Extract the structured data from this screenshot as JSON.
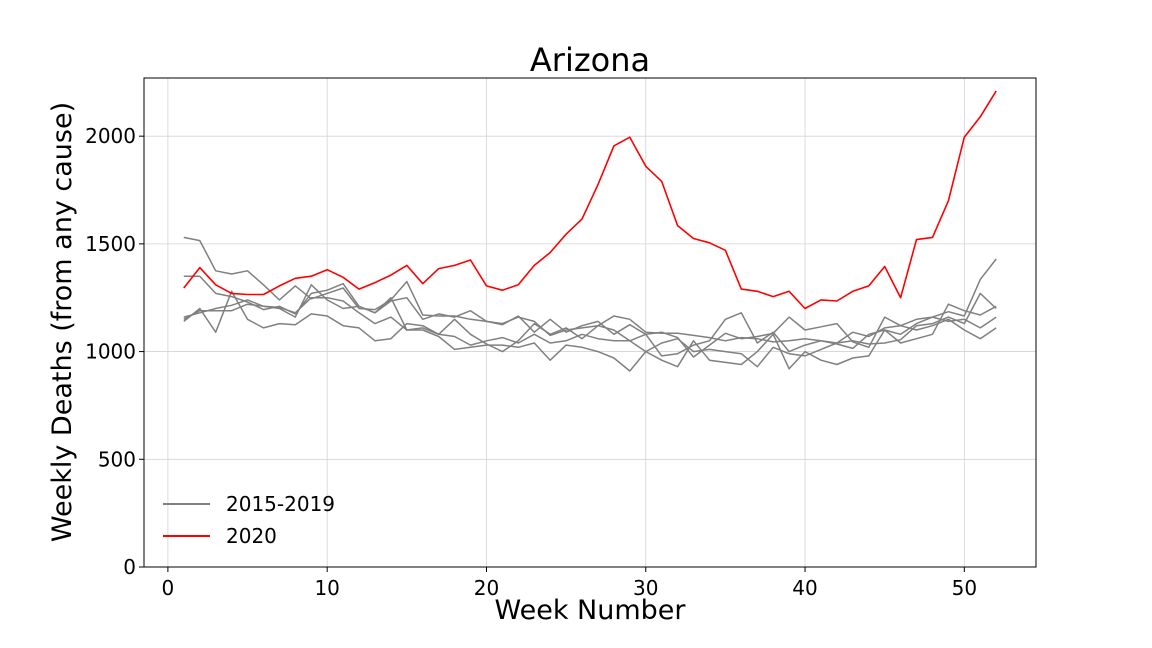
{
  "chart_data": {
    "type": "line",
    "title": "Arizona",
    "xlabel": "Week Number",
    "ylabel": "Weekly Deaths (from any cause)",
    "xlim": [
      -1.5,
      54.5
    ],
    "ylim": [
      0,
      2270
    ],
    "xticks": [
      0,
      10,
      20,
      30,
      40,
      50
    ],
    "yticks": [
      0,
      500,
      1000,
      1500,
      2000
    ],
    "grid": true,
    "legend_position": "lower-left",
    "legend": [
      {
        "label": "2015-2019",
        "color": "#808080"
      },
      {
        "label": "2020",
        "color": "#ff0000"
      }
    ],
    "x": [
      1,
      2,
      3,
      4,
      5,
      6,
      7,
      8,
      9,
      10,
      11,
      12,
      13,
      14,
      15,
      16,
      17,
      18,
      19,
      20,
      21,
      22,
      23,
      24,
      25,
      26,
      27,
      28,
      29,
      30,
      31,
      32,
      33,
      34,
      35,
      36,
      37,
      38,
      39,
      40,
      41,
      42,
      43,
      44,
      45,
      46,
      47,
      48,
      49,
      50,
      51,
      52
    ],
    "series": [
      {
        "name": "2015-2019",
        "color": "#808080",
        "values": [
          1530,
          1515,
          1375,
          1360,
          1375,
          1310,
          1240,
          1305,
          1245,
          1270,
          1295,
          1200,
          1195,
          1240,
          1325,
          1170,
          1165,
          1165,
          1150,
          1140,
          1130,
          1160,
          1140,
          1075,
          1100,
          1110,
          1120,
          1165,
          1150,
          1090,
          1085,
          1085,
          1075,
          1065,
          1050,
          1065,
          1060,
          1045,
          1050,
          1060,
          1050,
          1040,
          1050,
          1035,
          1040,
          1055,
          1120,
          1130,
          1160,
          1130,
          1270,
          1200
        ]
      },
      {
        "name": "2015-2019",
        "color": "#808080",
        "values": [
          1350,
          1350,
          1270,
          1255,
          1230,
          1195,
          1210,
          1175,
          1270,
          1285,
          1315,
          1210,
          1180,
          1235,
          1250,
          1150,
          1175,
          1160,
          1190,
          1140,
          1125,
          1165,
          1090,
          1150,
          1090,
          1120,
          1140,
          1080,
          1125,
          1080,
          1090,
          1065,
          975,
          1030,
          1085,
          1060,
          1070,
          1085,
          1160,
          1100,
          1115,
          1130,
          1045,
          1020,
          1160,
          1120,
          1150,
          1160,
          1185,
          1165,
          1335,
          1430
        ]
      },
      {
        "name": "2015-2019",
        "color": "#808080",
        "values": [
          1140,
          1200,
          1090,
          1280,
          1150,
          1110,
          1130,
          1125,
          1175,
          1165,
          1120,
          1110,
          1050,
          1060,
          1130,
          1120,
          1080,
          1150,
          1080,
          1035,
          1000,
          1050,
          1130,
          1080,
          1110,
          1060,
          1120,
          1100,
          1050,
          1080,
          980,
          990,
          1030,
          1050,
          1150,
          1180,
          1040,
          1090,
          1000,
          1030,
          1050,
          1035,
          1015,
          1080,
          1100,
          1080,
          1130,
          1160,
          1140,
          1150,
          1110,
          1160
        ]
      },
      {
        "name": "2015-2019",
        "color": "#808080",
        "values": [
          1160,
          1180,
          1200,
          1215,
          1240,
          1210,
          1200,
          1160,
          1310,
          1240,
          1200,
          1210,
          1180,
          1250,
          1100,
          1110,
          1080,
          1070,
          1030,
          1050,
          1065,
          1040,
          1080,
          1040,
          1050,
          1080,
          1060,
          1050,
          1050,
          1000,
          960,
          930,
          1050,
          960,
          950,
          940,
          1000,
          1080,
          920,
          1000,
          960,
          940,
          970,
          980,
          1100,
          1040,
          1060,
          1080,
          1220,
          1190,
          1170,
          1210
        ]
      },
      {
        "name": "2015-2019",
        "color": "#808080",
        "values": [
          1150,
          1190,
          1190,
          1190,
          1220,
          1210,
          1205,
          1180,
          1250,
          1250,
          1235,
          1180,
          1130,
          1160,
          1100,
          1100,
          1070,
          1010,
          1020,
          1030,
          1030,
          1020,
          1040,
          960,
          1030,
          1020,
          1000,
          970,
          910,
          1000,
          1040,
          1060,
          1000,
          1010,
          1000,
          990,
          930,
          1020,
          990,
          980,
          1010,
          1040,
          1090,
          1070,
          1110,
          1120,
          1100,
          1120,
          1150,
          1100,
          1060,
          1110
        ]
      },
      {
        "name": "2020",
        "color": "#ff0000",
        "values": [
          1295,
          1390,
          1310,
          1270,
          1265,
          1265,
          1305,
          1340,
          1350,
          1380,
          1345,
          1290,
          1320,
          1355,
          1400,
          1315,
          1385,
          1400,
          1425,
          1305,
          1285,
          1310,
          1400,
          1460,
          1545,
          1615,
          1775,
          1955,
          1995,
          1860,
          1790,
          1585,
          1525,
          1505,
          1470,
          1290,
          1280,
          1255,
          1280,
          1200,
          1240,
          1235,
          1280,
          1305,
          1395,
          1250,
          1520,
          1530,
          1700,
          1995,
          2090,
          2210
        ]
      }
    ]
  }
}
